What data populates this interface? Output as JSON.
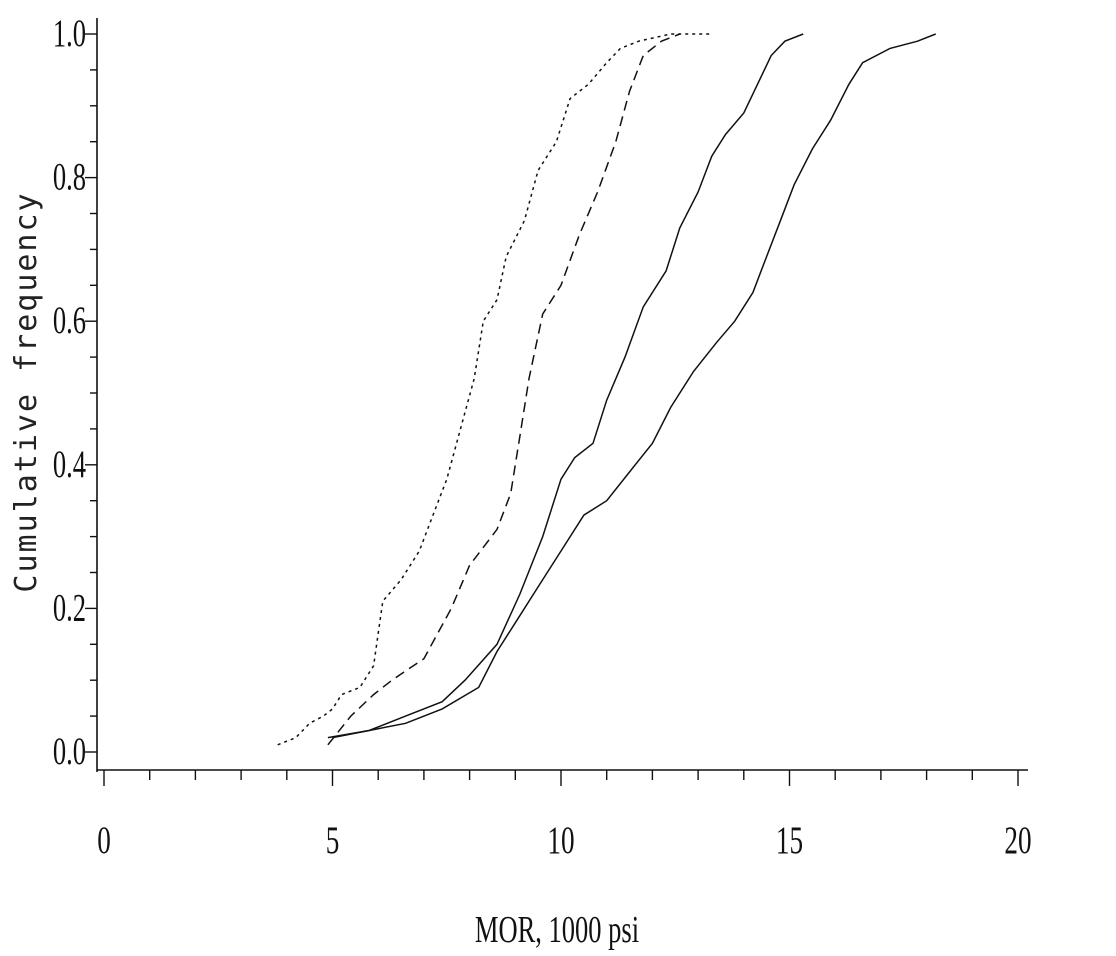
{
  "chart_data": {
    "type": "line",
    "title": "",
    "xlabel": "MOR, 1000 psi",
    "ylabel": "Cumulative frequency",
    "xlim": [
      0,
      20
    ],
    "ylim": [
      0,
      1.0
    ],
    "x_ticks": [
      "0",
      "5",
      "10",
      "15",
      "20"
    ],
    "y_ticks": [
      "0.0",
      "0.2",
      "0.4",
      "0.6",
      "0.8",
      "1.0"
    ],
    "grid": false,
    "legend": "none",
    "series": [
      {
        "dash": "3,4",
        "points": [
          [
            3.8,
            0.01
          ],
          [
            4.2,
            0.02
          ],
          [
            4.5,
            0.04
          ],
          [
            4.8,
            0.05
          ],
          [
            5.0,
            0.06
          ],
          [
            5.2,
            0.08
          ],
          [
            5.6,
            0.09
          ],
          [
            5.9,
            0.12
          ],
          [
            6.1,
            0.21
          ],
          [
            6.5,
            0.24
          ],
          [
            6.9,
            0.28
          ],
          [
            7.2,
            0.33
          ],
          [
            7.5,
            0.38
          ],
          [
            7.8,
            0.45
          ],
          [
            8.1,
            0.52
          ],
          [
            8.3,
            0.6
          ],
          [
            8.6,
            0.63
          ],
          [
            8.8,
            0.69
          ],
          [
            9.2,
            0.74
          ],
          [
            9.5,
            0.81
          ],
          [
            9.9,
            0.85
          ],
          [
            10.2,
            0.91
          ],
          [
            10.6,
            0.93
          ],
          [
            11.0,
            0.96
          ],
          [
            11.3,
            0.98
          ],
          [
            11.7,
            0.99
          ],
          [
            12.4,
            1.0
          ],
          [
            13.3,
            1.0
          ]
        ]
      },
      {
        "dash": "10,6",
        "points": [
          [
            4.9,
            0.01
          ],
          [
            5.4,
            0.05
          ],
          [
            5.9,
            0.08
          ],
          [
            6.3,
            0.1
          ],
          [
            7.0,
            0.13
          ],
          [
            7.6,
            0.2
          ],
          [
            8.0,
            0.26
          ],
          [
            8.6,
            0.31
          ],
          [
            8.9,
            0.36
          ],
          [
            9.1,
            0.44
          ],
          [
            9.3,
            0.52
          ],
          [
            9.6,
            0.61
          ],
          [
            10.0,
            0.65
          ],
          [
            10.4,
            0.72
          ],
          [
            10.8,
            0.78
          ],
          [
            11.2,
            0.85
          ],
          [
            11.5,
            0.92
          ],
          [
            11.8,
            0.97
          ],
          [
            12.2,
            0.99
          ],
          [
            12.6,
            1.0
          ]
        ]
      },
      {
        "dash": "",
        "points": [
          [
            5.0,
            0.02
          ],
          [
            5.8,
            0.03
          ],
          [
            6.6,
            0.05
          ],
          [
            7.4,
            0.07
          ],
          [
            7.9,
            0.1
          ],
          [
            8.6,
            0.15
          ],
          [
            9.1,
            0.22
          ],
          [
            9.6,
            0.3
          ],
          [
            10.0,
            0.38
          ],
          [
            10.3,
            0.41
          ],
          [
            10.7,
            0.43
          ],
          [
            11.0,
            0.49
          ],
          [
            11.4,
            0.55
          ],
          [
            11.8,
            0.62
          ],
          [
            12.3,
            0.67
          ],
          [
            12.6,
            0.73
          ],
          [
            13.0,
            0.78
          ],
          [
            13.3,
            0.83
          ],
          [
            13.6,
            0.86
          ],
          [
            14.0,
            0.89
          ],
          [
            14.3,
            0.93
          ],
          [
            14.6,
            0.97
          ],
          [
            14.9,
            0.99
          ],
          [
            15.3,
            1.0
          ]
        ]
      },
      {
        "dash": "",
        "points": [
          [
            4.9,
            0.02
          ],
          [
            5.8,
            0.03
          ],
          [
            6.6,
            0.04
          ],
          [
            7.4,
            0.06
          ],
          [
            8.2,
            0.09
          ],
          [
            8.6,
            0.14
          ],
          [
            9.0,
            0.18
          ],
          [
            9.5,
            0.23
          ],
          [
            10.0,
            0.28
          ],
          [
            10.5,
            0.33
          ],
          [
            11.0,
            0.35
          ],
          [
            11.5,
            0.39
          ],
          [
            12.0,
            0.43
          ],
          [
            12.4,
            0.48
          ],
          [
            12.9,
            0.53
          ],
          [
            13.4,
            0.57
          ],
          [
            13.8,
            0.6
          ],
          [
            14.2,
            0.64
          ],
          [
            14.5,
            0.69
          ],
          [
            14.8,
            0.74
          ],
          [
            15.1,
            0.79
          ],
          [
            15.5,
            0.84
          ],
          [
            15.9,
            0.88
          ],
          [
            16.3,
            0.93
          ],
          [
            16.6,
            0.96
          ],
          [
            17.2,
            0.98
          ],
          [
            17.8,
            0.99
          ],
          [
            18.2,
            1.0
          ]
        ]
      }
    ]
  }
}
